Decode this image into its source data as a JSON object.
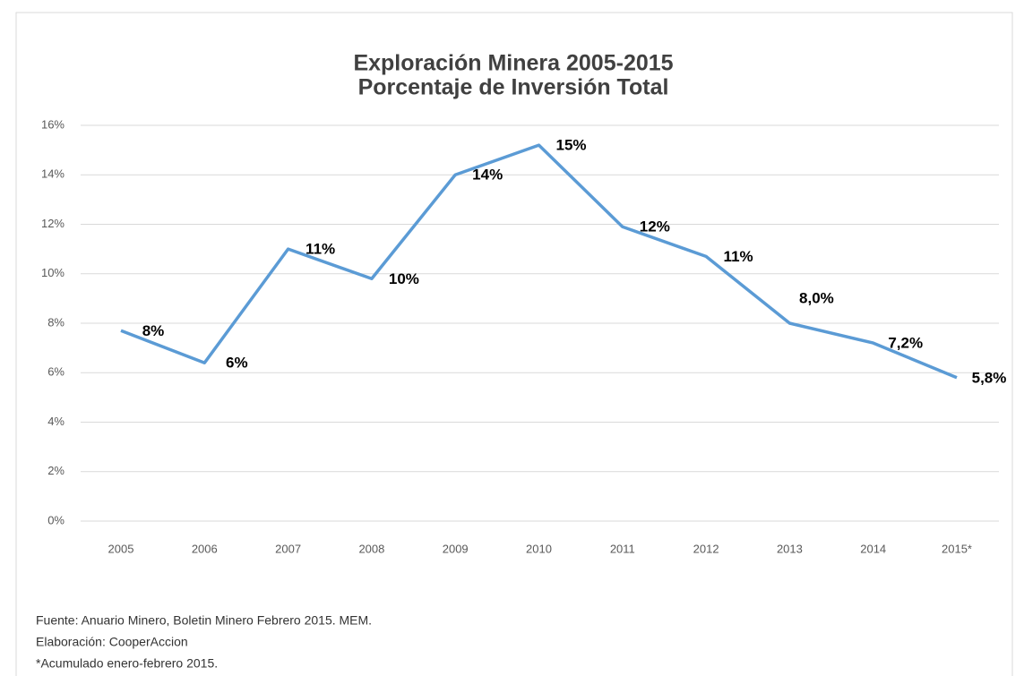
{
  "chart_data": {
    "type": "line",
    "title": "Exploración Minera 2005-2015",
    "subtitle": "Porcentaje de Inversión Total",
    "categories": [
      "2005",
      "2006",
      "2007",
      "2008",
      "2009",
      "2010",
      "2011",
      "2012",
      "2013",
      "2014",
      "2015*"
    ],
    "series": [
      {
        "name": "Porcentaje de Inversión Total",
        "color": "#5b9bd5",
        "values": [
          7.7,
          6.4,
          11.0,
          9.8,
          14.0,
          15.2,
          11.9,
          10.7,
          8.0,
          7.2,
          5.8
        ],
        "value_labels": [
          "8%",
          "6%",
          "11%",
          "10%",
          "14%",
          "15%",
          "12%",
          "11%",
          "8,0%",
          "7,2%",
          "5,8%"
        ]
      }
    ],
    "ylim": [
      0,
      16
    ],
    "yticks": [
      {
        "value": 0,
        "label": "0%"
      },
      {
        "value": 2,
        "label": "2%"
      },
      {
        "value": 4,
        "label": "4%"
      },
      {
        "value": 6,
        "label": "6%"
      },
      {
        "value": 8,
        "label": "8%"
      },
      {
        "value": 10,
        "label": "10%"
      },
      {
        "value": 12,
        "label": "12%"
      },
      {
        "value": 14,
        "label": "14%"
      },
      {
        "value": 16,
        "label": "16%"
      }
    ],
    "grid": true,
    "notes": [
      "Fuente: Anuario Minero, Boletin Minero Febrero 2015.  MEM.",
      "Elaboración: CooperAccion",
      "*Acumulado enero-febrero 2015."
    ]
  }
}
